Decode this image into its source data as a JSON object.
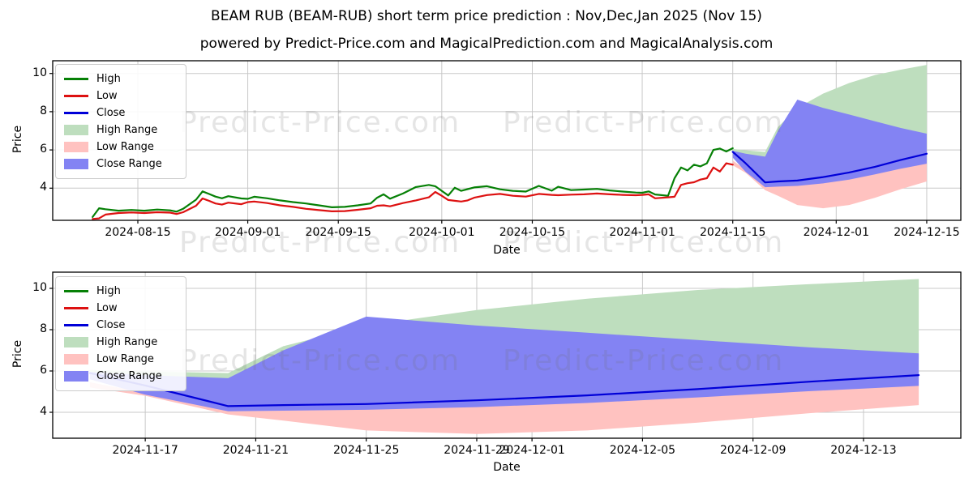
{
  "header": {
    "title": "BEAM RUB (BEAM-RUB) short term price prediction : Nov,Dec,Jan 2025 (Nov 15)",
    "subtitle": "powered by Predict-Price.com and MagicalPrediction.com and MagicalAnalysis.com"
  },
  "watermark": {
    "text": "Predict-Price.com"
  },
  "legend": {
    "entries": [
      {
        "label": "High",
        "type": "line",
        "color": "#068006"
      },
      {
        "label": "Low",
        "type": "line",
        "color": "#dd1111"
      },
      {
        "label": "Close",
        "type": "line",
        "color": "#0000d8"
      },
      {
        "label": "High Range",
        "type": "patch",
        "color": "#bedebe"
      },
      {
        "label": "Low Range",
        "type": "patch",
        "color": "#ffc2c0"
      },
      {
        "label": "Close Range",
        "type": "patch",
        "color": "#8383f3"
      }
    ]
  },
  "chart_data": [
    {
      "type": "line",
      "name": "historical-with-prediction",
      "xlabel": "Date",
      "ylabel": "Price",
      "grid": true,
      "legend_position": "upper-left",
      "x_ticks": [
        "2024-08-15",
        "2024-09-01",
        "2024-09-15",
        "2024-10-01",
        "2024-10-15",
        "2024-11-01",
        "2024-11-15",
        "2024-12-01",
        "2024-12-15"
      ],
      "y_ticks": [
        4,
        6,
        8,
        10
      ],
      "ylim": [
        2.3,
        10.66
      ],
      "series": [
        {
          "name": "High",
          "color": "#068006",
          "dates": [
            "2024-08-08",
            "2024-08-09",
            "2024-08-10",
            "2024-08-12",
            "2024-08-14",
            "2024-08-16",
            "2024-08-18",
            "2024-08-20",
            "2024-08-21",
            "2024-08-22",
            "2024-08-24",
            "2024-08-25",
            "2024-08-26",
            "2024-08-27",
            "2024-08-28",
            "2024-08-29",
            "2024-08-31",
            "2024-09-01",
            "2024-09-02",
            "2024-09-04",
            "2024-09-06",
            "2024-09-08",
            "2024-09-10",
            "2024-09-12",
            "2024-09-14",
            "2024-09-16",
            "2024-09-18",
            "2024-09-20",
            "2024-09-21",
            "2024-09-22",
            "2024-09-23",
            "2024-09-25",
            "2024-09-27",
            "2024-09-29",
            "2024-09-30",
            "2024-10-01",
            "2024-10-02",
            "2024-10-03",
            "2024-10-04",
            "2024-10-05",
            "2024-10-06",
            "2024-10-08",
            "2024-10-10",
            "2024-10-12",
            "2024-10-14",
            "2024-10-16",
            "2024-10-18",
            "2024-10-19",
            "2024-10-21",
            "2024-10-23",
            "2024-10-25",
            "2024-10-27",
            "2024-10-29",
            "2024-10-31",
            "2024-11-01",
            "2024-11-02",
            "2024-11-03",
            "2024-11-05",
            "2024-11-06",
            "2024-11-07",
            "2024-11-08",
            "2024-11-09",
            "2024-11-10",
            "2024-11-11",
            "2024-11-12",
            "2024-11-13",
            "2024-11-14",
            "2024-11-15"
          ],
          "values": [
            2.49,
            2.95,
            2.9,
            2.82,
            2.86,
            2.82,
            2.88,
            2.84,
            2.77,
            2.92,
            3.4,
            3.83,
            3.7,
            3.56,
            3.47,
            3.58,
            3.46,
            3.44,
            3.55,
            3.47,
            3.36,
            3.27,
            3.2,
            3.1,
            3.0,
            3.02,
            3.1,
            3.2,
            3.5,
            3.68,
            3.45,
            3.72,
            4.06,
            4.17,
            4.1,
            3.86,
            3.62,
            4.02,
            3.86,
            3.95,
            4.04,
            4.1,
            3.94,
            3.86,
            3.82,
            4.12,
            3.87,
            4.07,
            3.9,
            3.93,
            3.96,
            3.88,
            3.82,
            3.77,
            3.76,
            3.83,
            3.67,
            3.6,
            4.52,
            5.08,
            4.93,
            5.23,
            5.14,
            5.3,
            6.0,
            6.07,
            5.92,
            6.09
          ]
        },
        {
          "name": "Low",
          "color": "#dd1111",
          "dates": [
            "2024-08-08",
            "2024-08-09",
            "2024-08-10",
            "2024-08-12",
            "2024-08-14",
            "2024-08-16",
            "2024-08-18",
            "2024-08-20",
            "2024-08-21",
            "2024-08-22",
            "2024-08-24",
            "2024-08-25",
            "2024-08-26",
            "2024-08-27",
            "2024-08-28",
            "2024-08-29",
            "2024-08-31",
            "2024-09-01",
            "2024-09-02",
            "2024-09-04",
            "2024-09-06",
            "2024-09-08",
            "2024-09-10",
            "2024-09-12",
            "2024-09-14",
            "2024-09-16",
            "2024-09-18",
            "2024-09-20",
            "2024-09-21",
            "2024-09-22",
            "2024-09-23",
            "2024-09-25",
            "2024-09-27",
            "2024-09-29",
            "2024-09-30",
            "2024-10-01",
            "2024-10-02",
            "2024-10-03",
            "2024-10-04",
            "2024-10-05",
            "2024-10-06",
            "2024-10-08",
            "2024-10-10",
            "2024-10-12",
            "2024-10-14",
            "2024-10-16",
            "2024-10-18",
            "2024-10-19",
            "2024-10-21",
            "2024-10-23",
            "2024-10-25",
            "2024-10-27",
            "2024-10-29",
            "2024-10-31",
            "2024-11-01",
            "2024-11-02",
            "2024-11-03",
            "2024-11-05",
            "2024-11-06",
            "2024-11-07",
            "2024-11-08",
            "2024-11-09",
            "2024-11-10",
            "2024-11-11",
            "2024-11-12",
            "2024-11-13",
            "2024-11-14",
            "2024-11-15"
          ],
          "values": [
            2.39,
            2.42,
            2.62,
            2.7,
            2.73,
            2.7,
            2.74,
            2.72,
            2.65,
            2.74,
            3.08,
            3.46,
            3.34,
            3.2,
            3.14,
            3.24,
            3.16,
            3.27,
            3.3,
            3.22,
            3.1,
            3.02,
            2.92,
            2.85,
            2.79,
            2.8,
            2.87,
            2.95,
            3.08,
            3.1,
            3.05,
            3.22,
            3.36,
            3.52,
            3.8,
            3.6,
            3.38,
            3.34,
            3.3,
            3.36,
            3.5,
            3.64,
            3.7,
            3.6,
            3.56,
            3.7,
            3.65,
            3.63,
            3.66,
            3.68,
            3.72,
            3.68,
            3.65,
            3.63,
            3.65,
            3.68,
            3.47,
            3.52,
            3.55,
            4.17,
            4.26,
            4.31,
            4.45,
            4.52,
            5.08,
            4.87,
            5.3,
            5.23
          ]
        },
        {
          "name": "Close",
          "color": "#0000d8",
          "dates": [
            "2024-11-15",
            "2024-11-17",
            "2024-11-20",
            "2024-11-22",
            "2024-11-25",
            "2024-11-29",
            "2024-12-03",
            "2024-12-07",
            "2024-12-11",
            "2024-12-15"
          ],
          "values": [
            5.9,
            5.3,
            4.3,
            4.35,
            4.4,
            4.58,
            4.82,
            5.12,
            5.48,
            5.8
          ]
        }
      ],
      "bands": [
        {
          "name": "High Range",
          "color": "#bedebe",
          "dates": [
            "2024-11-15",
            "2024-11-17",
            "2024-11-20",
            "2024-11-22",
            "2024-11-25",
            "2024-11-29",
            "2024-12-03",
            "2024-12-07",
            "2024-12-11",
            "2024-12-15"
          ],
          "upper": [
            6.05,
            5.98,
            5.9,
            7.2,
            8.2,
            8.95,
            9.5,
            9.92,
            10.2,
            10.45
          ],
          "lower": [
            5.95,
            5.75,
            5.6,
            6.6,
            7.6,
            8.0,
            7.6,
            7.2,
            6.9,
            6.6
          ]
        },
        {
          "name": "Low Range",
          "color": "#ffc2c0",
          "dates": [
            "2024-11-15",
            "2024-11-17",
            "2024-11-20",
            "2024-11-22",
            "2024-11-25",
            "2024-11-29",
            "2024-12-03",
            "2024-12-07",
            "2024-12-11",
            "2024-12-15"
          ],
          "upper": [
            5.45,
            4.95,
            4.2,
            4.25,
            4.3,
            4.45,
            4.7,
            5.0,
            5.35,
            5.65
          ],
          "lower": [
            5.2,
            4.8,
            3.9,
            3.6,
            3.12,
            2.95,
            3.12,
            3.5,
            3.95,
            4.35
          ]
        },
        {
          "name": "Close Range",
          "color": "#8383f3",
          "dates": [
            "2024-11-15",
            "2024-11-17",
            "2024-11-20",
            "2024-11-22",
            "2024-11-25",
            "2024-11-29",
            "2024-12-03",
            "2024-12-07",
            "2024-12-11",
            "2024-12-15"
          ],
          "upper": [
            5.95,
            5.8,
            5.65,
            7.0,
            8.63,
            8.2,
            7.85,
            7.5,
            7.15,
            6.85
          ],
          "lower": [
            5.6,
            4.85,
            4.05,
            4.08,
            4.12,
            4.25,
            4.45,
            4.72,
            5.02,
            5.28
          ]
        }
      ]
    },
    {
      "type": "line",
      "name": "prediction-detail",
      "xlabel": "Date",
      "ylabel": "Price",
      "grid": true,
      "legend_position": "upper-left",
      "x_ticks": [
        "2024-11-17",
        "2024-11-21",
        "2024-11-25",
        "2024-11-29",
        "2024-12-01",
        "2024-12-05",
        "2024-12-09",
        "2024-12-13"
      ],
      "y_ticks": [
        4,
        6,
        8,
        10
      ],
      "ylim": [
        2.68,
        10.75
      ],
      "series": [
        {
          "name": "Close",
          "color": "#0000d8",
          "dates": [
            "2024-11-15",
            "2024-11-17",
            "2024-11-20",
            "2024-11-22",
            "2024-11-25",
            "2024-11-29",
            "2024-12-03",
            "2024-12-07",
            "2024-12-11",
            "2024-12-15"
          ],
          "values": [
            5.9,
            5.3,
            4.3,
            4.35,
            4.4,
            4.58,
            4.82,
            5.12,
            5.48,
            5.8
          ]
        }
      ],
      "bands": [
        {
          "name": "High Range",
          "color": "#bedebe",
          "dates": [
            "2024-11-15",
            "2024-11-17",
            "2024-11-20",
            "2024-11-22",
            "2024-11-25",
            "2024-11-29",
            "2024-12-03",
            "2024-12-07",
            "2024-12-11",
            "2024-12-15"
          ],
          "upper": [
            6.05,
            5.98,
            5.9,
            7.2,
            8.2,
            8.95,
            9.5,
            9.92,
            10.2,
            10.45
          ],
          "lower": [
            5.95,
            5.75,
            5.6,
            6.6,
            7.6,
            8.0,
            7.6,
            7.2,
            6.9,
            6.6
          ]
        },
        {
          "name": "Low Range",
          "color": "#ffc2c0",
          "dates": [
            "2024-11-15",
            "2024-11-17",
            "2024-11-20",
            "2024-11-22",
            "2024-11-25",
            "2024-11-29",
            "2024-12-03",
            "2024-12-07",
            "2024-12-11",
            "2024-12-15"
          ],
          "upper": [
            5.45,
            4.95,
            4.2,
            4.25,
            4.3,
            4.45,
            4.7,
            5.0,
            5.35,
            5.65
          ],
          "lower": [
            5.2,
            4.8,
            3.9,
            3.6,
            3.12,
            2.95,
            3.12,
            3.5,
            3.95,
            4.35
          ]
        },
        {
          "name": "Close Range",
          "color": "#8383f3",
          "dates": [
            "2024-11-15",
            "2024-11-17",
            "2024-11-20",
            "2024-11-22",
            "2024-11-25",
            "2024-11-29",
            "2024-12-03",
            "2024-12-07",
            "2024-12-11",
            "2024-12-15"
          ],
          "upper": [
            5.95,
            5.8,
            5.65,
            7.0,
            8.63,
            8.2,
            7.85,
            7.5,
            7.15,
            6.85
          ],
          "lower": [
            5.6,
            4.85,
            4.05,
            4.08,
            4.12,
            4.25,
            4.45,
            4.72,
            5.02,
            5.28
          ]
        }
      ]
    }
  ]
}
